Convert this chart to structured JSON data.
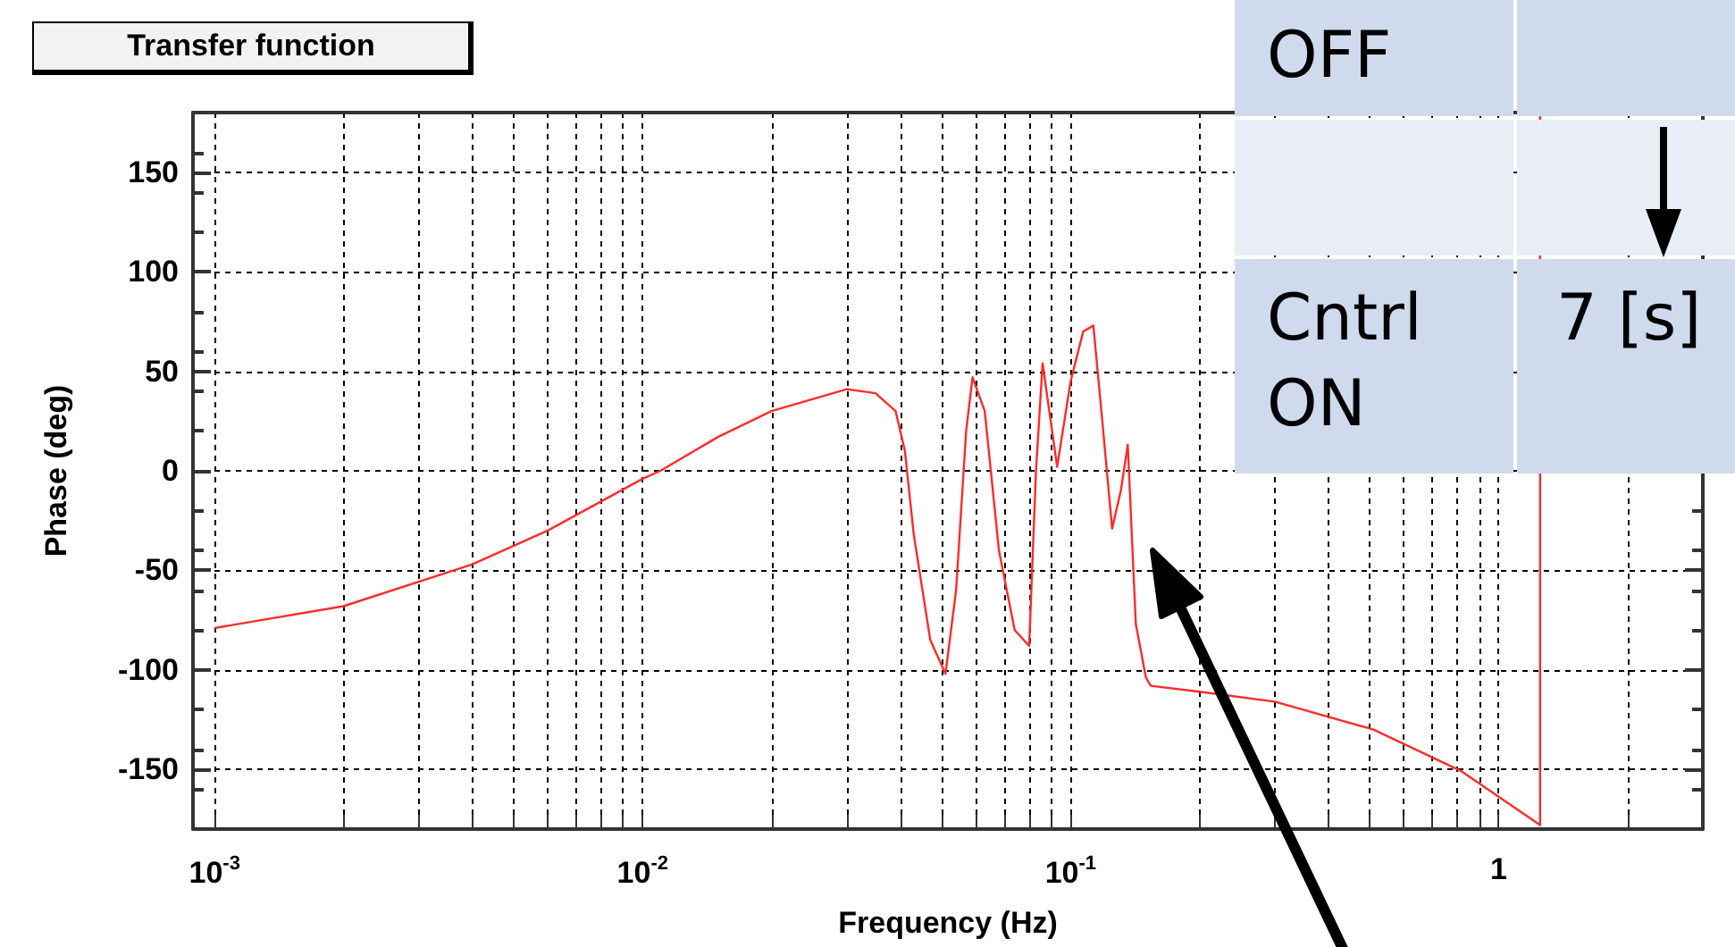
{
  "chart_data": {
    "type": "line",
    "title": "Transfer function",
    "xlabel": "Frequency (Hz)",
    "ylabel": "Phase (deg)",
    "annotations": [
      "OFF",
      "Cntrl ON",
      "7 [s]"
    ],
    "log": "x",
    "grid": true,
    "marker": "none",
    "line_style": "solid",
    "xlim": [
      0.00089,
      3
    ],
    "ylim": [
      -180,
      180
    ],
    "xticks": [
      {
        "value": 0.001,
        "label": "10$^{-3}$"
      },
      {
        "value": 0.002,
        "label": null
      },
      {
        "value": 0.003,
        "label": null
      },
      {
        "value": 0.004,
        "label": null
      },
      {
        "value": 0.005,
        "label": null
      },
      {
        "value": 0.006,
        "label": null
      },
      {
        "value": 0.007,
        "label": null
      },
      {
        "value": 0.008,
        "label": null
      },
      {
        "value": 0.009,
        "label": null
      },
      {
        "value": 0.01,
        "label": "10$^{-2}$"
      },
      {
        "value": 0.02,
        "label": null
      },
      {
        "value": 0.03,
        "label": null
      },
      {
        "value": 0.04,
        "label": null
      },
      {
        "value": 0.05,
        "label": null
      },
      {
        "value": 0.06,
        "label": null
      },
      {
        "value": 0.07,
        "label": null
      },
      {
        "value": 0.08,
        "label": null
      },
      {
        "value": 0.09,
        "label": null
      },
      {
        "value": 0.1,
        "label": "10$^{-1}$"
      },
      {
        "value": 0.2,
        "label": null
      },
      {
        "value": 0.3,
        "label": null
      },
      {
        "value": 0.4,
        "label": null
      },
      {
        "value": 0.5,
        "label": null
      },
      {
        "value": 0.6,
        "label": null
      },
      {
        "value": 0.7,
        "label": null
      },
      {
        "value": 0.8,
        "label": null
      },
      {
        "value": 0.9,
        "label": null
      },
      {
        "value": 1,
        "label": "1"
      },
      {
        "value": 2,
        "label": null
      }
    ],
    "yticks": [
      -150,
      -100,
      -50,
      0,
      50,
      100,
      150
    ],
    "series": [
      {
        "color": "#ff2a2a",
        "x": [
          0.001,
          0.002,
          0.004,
          0.006,
          0.01,
          0.011,
          0.015,
          0.02,
          0.03,
          0.035,
          0.039,
          0.041,
          0.043,
          0.047,
          0.051,
          0.054,
          0.057,
          0.059,
          0.063,
          0.068,
          0.074,
          0.08,
          0.083,
          0.086,
          0.093,
          0.1,
          0.107,
          0.113,
          0.118,
          0.125,
          0.131,
          0.136,
          0.142,
          0.15,
          0.154,
          0.2,
          0.3,
          0.51,
          0.82,
          1.25,
          1.2501
        ],
        "values": [
          -79,
          -68,
          -47,
          -30,
          -4,
          0,
          17,
          30,
          41,
          39,
          30,
          10,
          -32,
          -85,
          -102,
          -60,
          20,
          47,
          30,
          -40,
          -80,
          -88,
          0,
          54,
          2,
          45,
          70,
          73,
          30,
          -29,
          -10,
          13,
          -77,
          -104,
          -108,
          -111,
          -116,
          -130,
          -151,
          -178,
          179
        ]
      }
    ]
  }
}
